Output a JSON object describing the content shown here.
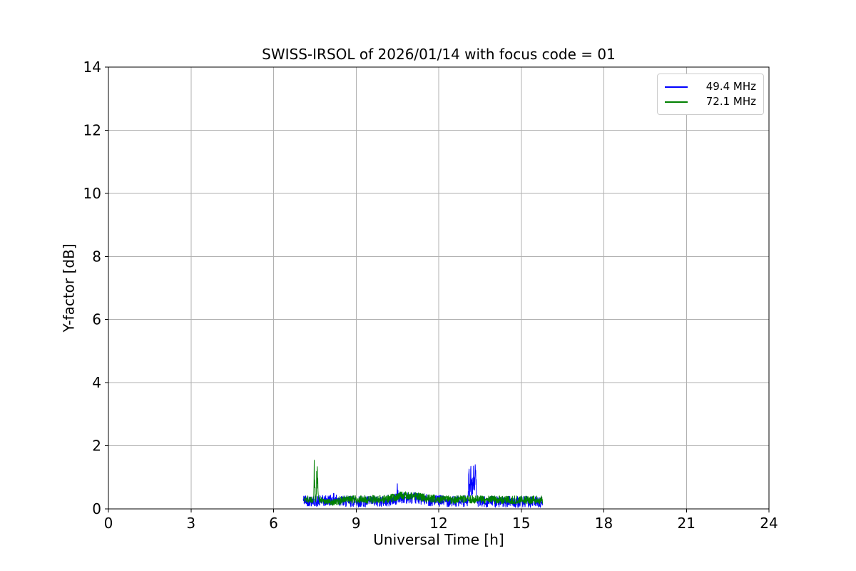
{
  "chart_data": {
    "type": "line",
    "title": "SWISS-IRSOL of 2026/01/14 with focus code = 01",
    "xlabel": "Universal Time [h]",
    "ylabel": "Y-factor [dB]",
    "xlim": [
      0,
      24
    ],
    "ylim": [
      0,
      14
    ],
    "xticks": [
      0,
      3,
      6,
      9,
      12,
      15,
      18,
      21,
      24
    ],
    "yticks": [
      0,
      2,
      4,
      6,
      8,
      10,
      12,
      14
    ],
    "grid": true,
    "grid_color": "#b0b0b0",
    "spine_color": "#000000",
    "legend_position": "upper right",
    "sample_step_h": 0.008,
    "data_description": "Noisy Y-factor traces from ~7.1h to ~15.8h UT; baseline band ~0.05-0.5 dB with spikes.",
    "series": [
      {
        "name": "49.4 MHz",
        "color": "#0000ff",
        "seed": 42,
        "x_start": 7.08,
        "x_end": 15.78,
        "baseline": [
          [
            7.08,
            0.28
          ],
          [
            7.5,
            0.25
          ],
          [
            7.9,
            0.25
          ],
          [
            8.2,
            0.32
          ],
          [
            8.5,
            0.24
          ],
          [
            9.5,
            0.23
          ],
          [
            10.2,
            0.26
          ],
          [
            10.7,
            0.36
          ],
          [
            11.2,
            0.34
          ],
          [
            11.8,
            0.26
          ],
          [
            12.5,
            0.24
          ],
          [
            13.5,
            0.23
          ],
          [
            14.5,
            0.22
          ],
          [
            15.78,
            0.22
          ]
        ],
        "noise_amp": [
          [
            7.08,
            0.18
          ],
          [
            15.78,
            0.18
          ]
        ],
        "spikes": [
          {
            "x": 10.5,
            "w": 0.06,
            "h": 1.06
          },
          {
            "x": 13.1,
            "w": 0.08,
            "h": 1.3
          },
          {
            "x": 13.17,
            "w": 0.1,
            "h": 1.5
          },
          {
            "x": 13.25,
            "w": 0.14,
            "h": 1.42
          },
          {
            "x": 13.33,
            "w": 0.1,
            "h": 1.52
          }
        ]
      },
      {
        "name": "72.1 MHz",
        "color": "#008000",
        "seed": 1337,
        "x_start": 7.11,
        "x_end": 15.78,
        "baseline": [
          [
            7.11,
            0.3
          ],
          [
            7.45,
            0.31
          ],
          [
            7.75,
            0.28
          ],
          [
            8.0,
            0.22
          ],
          [
            8.25,
            0.22
          ],
          [
            8.5,
            0.29
          ],
          [
            9.5,
            0.3
          ],
          [
            10.2,
            0.32
          ],
          [
            10.6,
            0.42
          ],
          [
            11.1,
            0.41
          ],
          [
            11.7,
            0.33
          ],
          [
            12.3,
            0.3
          ],
          [
            13.2,
            0.3
          ],
          [
            14.2,
            0.29
          ],
          [
            15.78,
            0.28
          ]
        ],
        "noise_amp": [
          [
            7.11,
            0.13
          ],
          [
            7.9,
            0.1
          ],
          [
            8.4,
            0.13
          ],
          [
            15.78,
            0.13
          ]
        ],
        "spikes": [
          {
            "x": 7.49,
            "w": 0.07,
            "h": 1.8
          },
          {
            "x": 7.585,
            "w": 0.09,
            "h": 1.62
          }
        ]
      }
    ]
  }
}
